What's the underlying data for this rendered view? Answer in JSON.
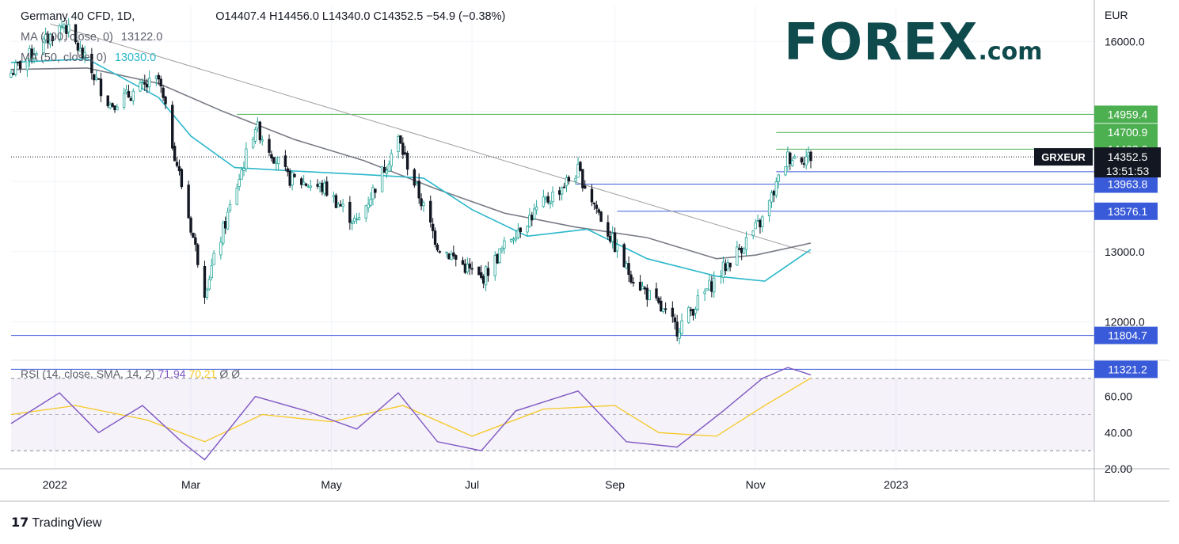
{
  "header": {
    "symbol_line": "Germany 40 CFD, 1D,",
    "ohlc": "O14407.4  H14456.0  L14340.0  C14352.5  −54.9 (−0.38%)",
    "ma100_label": "MA (100, close, 0)",
    "ma100_value": "13122.0",
    "ma50_label": "MA (50, close, 0)",
    "ma50_value": "13030.0"
  },
  "brand": {
    "text": "FOREX",
    "suffix": ".com"
  },
  "footer": {
    "tradingview": "TradingView"
  },
  "axis": {
    "currency": "EUR",
    "price_ticks": [
      "16000.0",
      "13000.0",
      "12000.0"
    ],
    "rsi_ticks": [
      "60.00",
      "40.00",
      "20.00"
    ],
    "x_ticks": [
      "2022",
      "Mar",
      "May",
      "Jul",
      "Sep",
      "Nov",
      "2023"
    ]
  },
  "rsi_header": {
    "label": "RSI (14, close, SMA, 14, 2)",
    "rsi": "71.94",
    "sma": "70.21",
    "na1": "Ø",
    "na2": "Ø"
  },
  "colors": {
    "up_candle": "#26a69a",
    "ma50": "#2ab7ca",
    "ma100": "#787b86",
    "trendline": "#9e9e9e",
    "green_level": "#4caf50",
    "blue_level": "#3a5bd9",
    "rsi_line": "#7e57c2",
    "rsi_sma": "#f7c922",
    "brand": "#0f4a4c"
  },
  "chart_data": {
    "type": "candlestick",
    "title": "Germany 40 CFD, 1D",
    "y_unit": "EUR",
    "ylim": [
      11450,
      16500
    ],
    "x_range": [
      "2021-12-13",
      "2023-03-28"
    ],
    "last_price": 14352.5,
    "price_tag": "GRXEUR",
    "countdown": "13:51:53",
    "resistance_levels": [
      14959.4,
      14700.9,
      14462.6
    ],
    "support_levels": [
      14140.0,
      13963.8,
      13576.1,
      11804.7,
      11321.2
    ],
    "trendline": [
      [
        "2021-12-30",
        16250
      ],
      [
        "2022-11-25",
        12980
      ]
    ],
    "moving_averages": [
      {
        "name": "MA (100, close, 0)",
        "value": 13122.0,
        "points": [
          [
            "2021-12-13",
            15600
          ],
          [
            "2022-01-15",
            15620
          ],
          [
            "2022-02-15",
            15400
          ],
          [
            "2022-03-15",
            15000
          ],
          [
            "2022-04-15",
            14600
          ],
          [
            "2022-05-15",
            14300
          ],
          [
            "2022-06-15",
            13900
          ],
          [
            "2022-07-15",
            13550
          ],
          [
            "2022-08-15",
            13350
          ],
          [
            "2022-09-15",
            13200
          ],
          [
            "2022-10-15",
            12900
          ],
          [
            "2022-11-01",
            12950
          ],
          [
            "2022-11-25",
            13122
          ]
        ]
      },
      {
        "name": "MA (50, close, 0)",
        "value": 13030.0,
        "points": [
          [
            "2021-12-13",
            15700
          ],
          [
            "2022-01-15",
            15750
          ],
          [
            "2022-02-15",
            15200
          ],
          [
            "2022-03-01",
            14650
          ],
          [
            "2022-03-20",
            14200
          ],
          [
            "2022-04-15",
            14150
          ],
          [
            "2022-05-15",
            14100
          ],
          [
            "2022-06-10",
            14050
          ],
          [
            "2022-07-01",
            13600
          ],
          [
            "2022-07-25",
            13220
          ],
          [
            "2022-08-20",
            13320
          ],
          [
            "2022-09-15",
            12900
          ],
          [
            "2022-10-15",
            12650
          ],
          [
            "2022-11-05",
            12580
          ],
          [
            "2022-11-25",
            13030
          ]
        ]
      }
    ],
    "candles_summary": [
      [
        "2021-12-13",
        15550
      ],
      [
        "2022-01-05",
        16250
      ],
      [
        "2022-01-25",
        15100
      ],
      [
        "2022-02-15",
        15450
      ],
      [
        "2022-03-07",
        12450
      ],
      [
        "2022-03-29",
        14800
      ],
      [
        "2022-04-12",
        14050
      ],
      [
        "2022-04-28",
        13900
      ],
      [
        "2022-05-12",
        13400
      ],
      [
        "2022-05-30",
        14600
      ],
      [
        "2022-06-16",
        13100
      ],
      [
        "2022-07-05",
        12600
      ],
      [
        "2022-07-20",
        13300
      ],
      [
        "2022-08-16",
        14150
      ],
      [
        "2022-09-06",
        12750
      ],
      [
        "2022-09-28",
        11900
      ],
      [
        "2022-10-18",
        12750
      ],
      [
        "2022-11-04",
        13450
      ],
      [
        "2022-11-15",
        14350
      ],
      [
        "2022-11-25",
        14352.5
      ]
    ],
    "rsi": {
      "name": "RSI (14, close, SMA, 14, 2)",
      "ylim": [
        20,
        80
      ],
      "bands": [
        30,
        50,
        70
      ],
      "last": 71.94,
      "sma_last": 70.21,
      "points": [
        [
          "2021-12-13",
          45
        ],
        [
          "2022-01-03",
          62
        ],
        [
          "2022-01-20",
          40
        ],
        [
          "2022-02-08",
          55
        ],
        [
          "2022-02-25",
          35
        ],
        [
          "2022-03-07",
          25
        ],
        [
          "2022-03-29",
          60
        ],
        [
          "2022-04-20",
          52
        ],
        [
          "2022-05-12",
          42
        ],
        [
          "2022-05-30",
          62
        ],
        [
          "2022-06-16",
          35
        ],
        [
          "2022-07-05",
          30
        ],
        [
          "2022-07-20",
          52
        ],
        [
          "2022-08-16",
          63
        ],
        [
          "2022-09-06",
          35
        ],
        [
          "2022-09-28",
          32
        ],
        [
          "2022-10-18",
          52
        ],
        [
          "2022-11-04",
          70
        ],
        [
          "2022-11-15",
          76
        ],
        [
          "2022-11-25",
          71.94
        ]
      ],
      "sma_points": [
        [
          "2021-12-13",
          50
        ],
        [
          "2022-01-10",
          55
        ],
        [
          "2022-02-10",
          47
        ],
        [
          "2022-03-07",
          35
        ],
        [
          "2022-04-01",
          50
        ],
        [
          "2022-05-01",
          46
        ],
        [
          "2022-06-01",
          55
        ],
        [
          "2022-07-01",
          38
        ],
        [
          "2022-08-01",
          53
        ],
        [
          "2022-09-01",
          55
        ],
        [
          "2022-09-20",
          40
        ],
        [
          "2022-10-15",
          38
        ],
        [
          "2022-11-05",
          55
        ],
        [
          "2022-11-25",
          70.21
        ]
      ]
    }
  }
}
